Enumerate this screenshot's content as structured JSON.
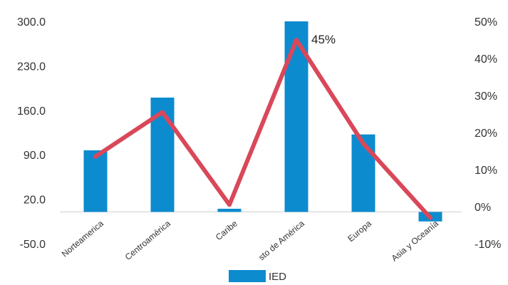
{
  "chart_data": {
    "type": "bar",
    "categories": [
      "Norteamerica",
      "Centroamérica",
      "Caribe",
      "sto de América",
      "Europa",
      "Asia y Oceanía"
    ],
    "series": [
      {
        "name": "IED",
        "type": "bar",
        "axis": "left",
        "values": [
          97,
          180,
          5,
          300,
          122,
          -15
        ]
      },
      {
        "type": "line",
        "axis": "right",
        "values": [
          13.5,
          25.5,
          0.5,
          45,
          17,
          -3
        ]
      }
    ],
    "title": "",
    "y_left": {
      "ticks": [
        "300.0",
        "230.0",
        "160.0",
        "90.0",
        "20.0",
        "-50.0"
      ],
      "range": [
        -50,
        300
      ]
    },
    "y_right": {
      "ticks": [
        "50%",
        "40%",
        "30%",
        "20%",
        "10%",
        "0%",
        "-10%"
      ],
      "range": [
        -10,
        50
      ]
    },
    "annotations": [
      {
        "text": "45%",
        "category": "sto de América"
      }
    ],
    "legend": {
      "position": "bottom",
      "entries": [
        "IED"
      ]
    },
    "grid": false,
    "colors": {
      "bar": "#0d8bcf",
      "line": "#d94859"
    }
  }
}
